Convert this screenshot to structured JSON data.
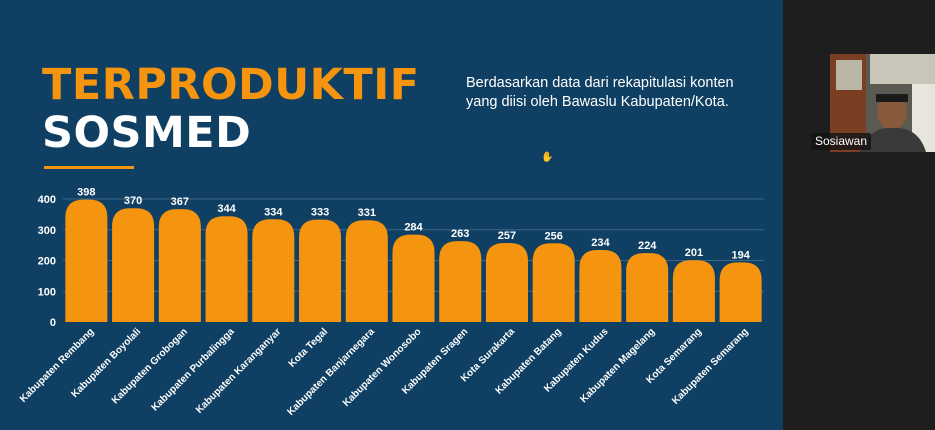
{
  "slide": {
    "title_line1": "TERPRODUKTIF",
    "title_line2": "SOSMED",
    "subtitle": "Berdasarkan data dari rekapitulasi konten yang diisi oleh Bawaslu Kabupaten/Kota."
  },
  "colors": {
    "background": "#0f3f62",
    "accent": "#f5940e",
    "text": "#ffffff"
  },
  "chart_data": {
    "type": "bar",
    "title": "",
    "xlabel": "",
    "ylabel": "",
    "ylim": [
      0,
      400
    ],
    "yticks": [
      0,
      100,
      200,
      300,
      400
    ],
    "grid": true,
    "categories": [
      "Kabupaten Rembang",
      "Kabupaten Boyolali",
      "Kabupaten Grobogan",
      "Kabupaten Purbalingga",
      "Kabupaten Karanganyar",
      "Kota Tegal",
      "Kabupaten Banjarnegara",
      "Kabupaten Wonosobo",
      "Kabupaten Sragen",
      "Kota Surakarta",
      "Kabupaten Batang",
      "Kabupaten Kudus",
      "Kabupaten Magelang",
      "Kota Semarang",
      "Kabupaten Semarang"
    ],
    "values": [
      398,
      370,
      367,
      344,
      334,
      333,
      331,
      284,
      263,
      257,
      256,
      234,
      224,
      201,
      194
    ]
  },
  "meeting": {
    "participant_name": "Sosiawan"
  }
}
